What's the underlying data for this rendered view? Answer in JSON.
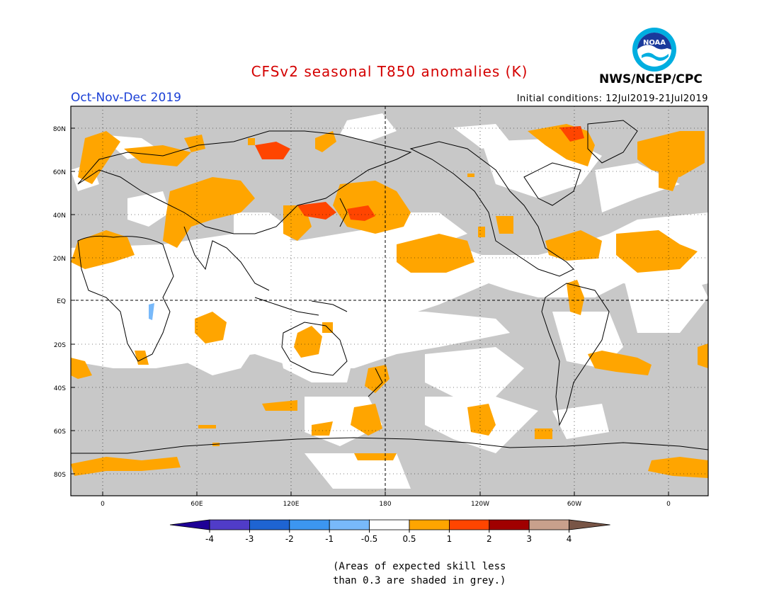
{
  "header": {
    "title": "CFSv2 seasonal T850 anomalies (K)",
    "season": "Oct-Nov-Dec 2019",
    "initial_conditions": "Initial conditions: 12Jul2019-21Jul2019",
    "agency": "NWS/NCEP/CPC",
    "logo_text": "NOAA"
  },
  "map": {
    "lat_labels": [
      "80N",
      "60N",
      "40N",
      "20N",
      "EQ",
      "20S",
      "40S",
      "60S",
      "80S"
    ],
    "lon_labels": [
      "0",
      "60E",
      "120E",
      "180",
      "120W",
      "60W",
      "0"
    ],
    "colors": {
      "grey_low_skill": "#c8c8c8",
      "ocean_land_background": "#ffffff",
      "anomaly_0_5_to_1": "#ffa500",
      "anomaly_1_to_2": "#ff4500"
    }
  },
  "colorbar": {
    "labels": [
      "-4",
      "-3",
      "-2",
      "-1",
      "-0.5",
      "0.5",
      "1",
      "2",
      "3",
      "4"
    ],
    "colors": [
      "#1e0096",
      "#503cc8",
      "#1e64d2",
      "#3c96f0",
      "#78b9fa",
      "#ffffff",
      "#ffa500",
      "#ff4500",
      "#a00000",
      "#c8a08c",
      "#785546"
    ]
  },
  "footnote": {
    "line1": "(Areas of expected skill less",
    "line2": "than 0.3 are shaded in grey.)"
  }
}
